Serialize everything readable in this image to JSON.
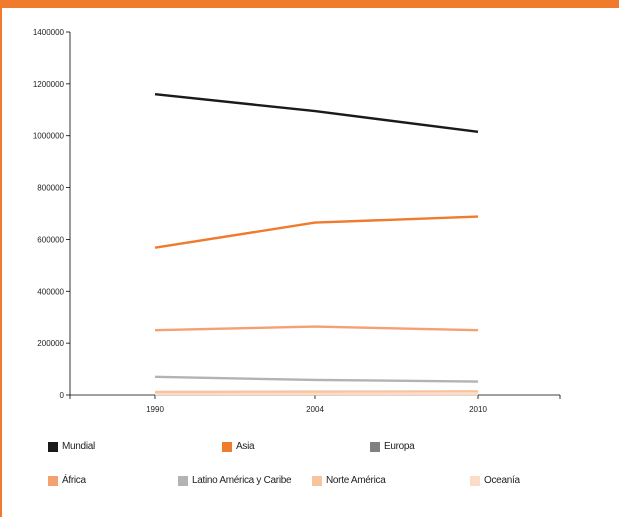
{
  "chart_data": {
    "type": "line",
    "title": "",
    "xlabel": "",
    "ylabel": "",
    "categories": [
      "1990",
      "2004",
      "2010"
    ],
    "ylim": [
      0,
      1400000
    ],
    "yticks": [
      0,
      200000,
      400000,
      600000,
      800000,
      1000000,
      1200000,
      1400000
    ],
    "grid": false,
    "legend_position": "bottom",
    "series": [
      {
        "name": "Mundial",
        "color": "#1a1a1a",
        "values": [
          1160000,
          1095000,
          1015000
        ]
      },
      {
        "name": "Asia",
        "color": "#f07b2c",
        "values": [
          568000,
          665000,
          688000
        ]
      },
      {
        "name": "Europa",
        "color": "#808080",
        "values": [
          2000,
          2000,
          2000
        ]
      },
      {
        "name": "África",
        "color": "#f4a070",
        "values": [
          250000,
          264000,
          250000
        ]
      },
      {
        "name": "Latino América y Caribe",
        "color": "#b3b3b3",
        "values": [
          70000,
          58000,
          52000
        ]
      },
      {
        "name": "Norte América",
        "color": "#f7c49e",
        "values": [
          12000,
          13000,
          14000
        ]
      },
      {
        "name": "Oceanía",
        "color": "#fbdcc8",
        "values": [
          3000,
          3000,
          3000
        ]
      }
    ]
  },
  "frame": {
    "accent": "#f07b2c"
  }
}
